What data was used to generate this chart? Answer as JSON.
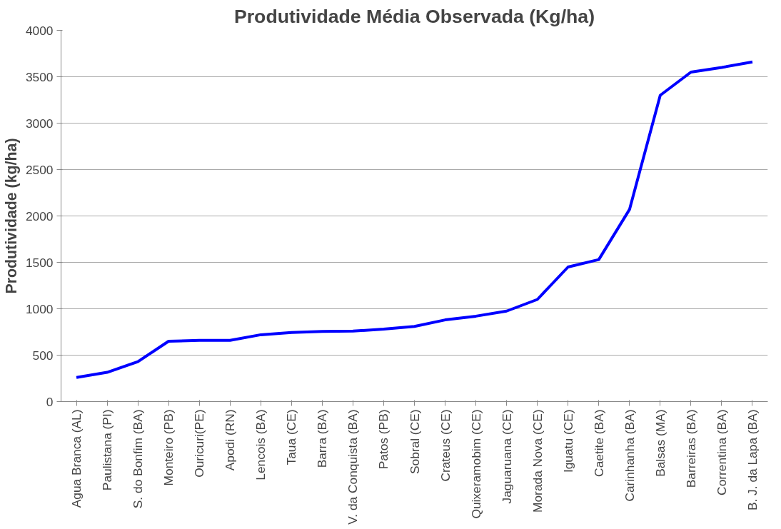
{
  "chart_data": {
    "type": "line",
    "title": "Produtividade Média Observada (Kg/ha)",
    "ylabel": "Produtividade (kg/ha)",
    "categories": [
      "Agua Branca (AL)",
      "Paulistana (PI)",
      "S. do Bonfim (BA)",
      "Monteiro (PB)",
      "Ouricuri(PE)",
      "Apodi (RN)",
      "Lencois (BA)",
      "Taua (CE)",
      "Barra (BA)",
      "V. da Conquista (BA)",
      "Patos (PB)",
      "Sobral (CE)",
      "Crateus (CE)",
      "Quixeramobim (CE)",
      "Jaguaruana (CE)",
      "Morada Nova (CE)",
      "Iguatu (CE)",
      "Caetite (BA)",
      "Carinhanha (BA)",
      "Balsas (MA)",
      "Barreiras (BA)",
      "Correntina (BA)",
      "B. J. da Lapa (BA)"
    ],
    "series": [
      {
        "color": "#0000ff",
        "values": [
          260,
          315,
          430,
          650,
          660,
          660,
          720,
          745,
          755,
          760,
          780,
          810,
          880,
          920,
          975,
          1100,
          1450,
          1530,
          2070,
          3300,
          3550,
          3600,
          3660
        ]
      }
    ],
    "ylim": [
      0,
      4000
    ],
    "yticks": [
      0,
      500,
      1000,
      1500,
      2000,
      2500,
      3000,
      3500,
      4000
    ],
    "grid": "y",
    "marker": "none",
    "line_style": "solid"
  }
}
